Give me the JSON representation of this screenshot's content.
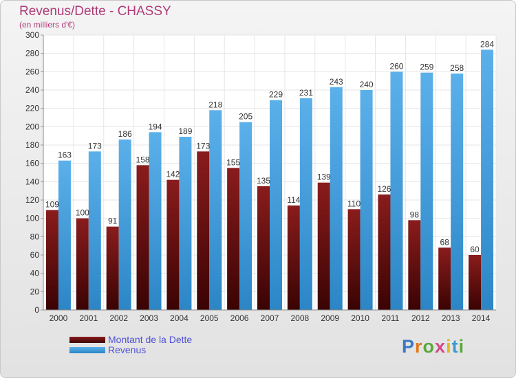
{
  "header": {
    "title": "Revenus/Dette - CHASSY",
    "subtitle": "(en milliers d'€)"
  },
  "legend": {
    "debt_label": "Montant de la Dette",
    "revenue_label": "Revenus"
  },
  "logo": {
    "text": "Proxiti"
  },
  "colors": {
    "debt": "#6e1111",
    "revenue": "#3a97dc",
    "title": "#b03a78",
    "legend_text": "#5050d8"
  },
  "chart_data": {
    "type": "bar",
    "title": "Revenus/Dette - CHASSY",
    "subtitle": "(en milliers d'€)",
    "categories": [
      "2000",
      "2001",
      "2002",
      "2003",
      "2004",
      "2005",
      "2006",
      "2007",
      "2008",
      "2009",
      "2010",
      "2011",
      "2012",
      "2013",
      "2014"
    ],
    "series": [
      {
        "name": "Montant de la Dette",
        "values": [
          109,
          100,
          91,
          158,
          142,
          173,
          155,
          135,
          114,
          139,
          110,
          126,
          98,
          68,
          60
        ]
      },
      {
        "name": "Revenus",
        "values": [
          163,
          173,
          186,
          194,
          189,
          218,
          205,
          229,
          231,
          243,
          240,
          260,
          259,
          258,
          284
        ]
      }
    ],
    "ylim": [
      0,
      300
    ],
    "yticks": [
      0,
      20,
      40,
      60,
      80,
      100,
      120,
      140,
      160,
      180,
      200,
      220,
      240,
      260,
      280,
      300
    ],
    "grid": true,
    "legend_position": "bottom-left"
  }
}
